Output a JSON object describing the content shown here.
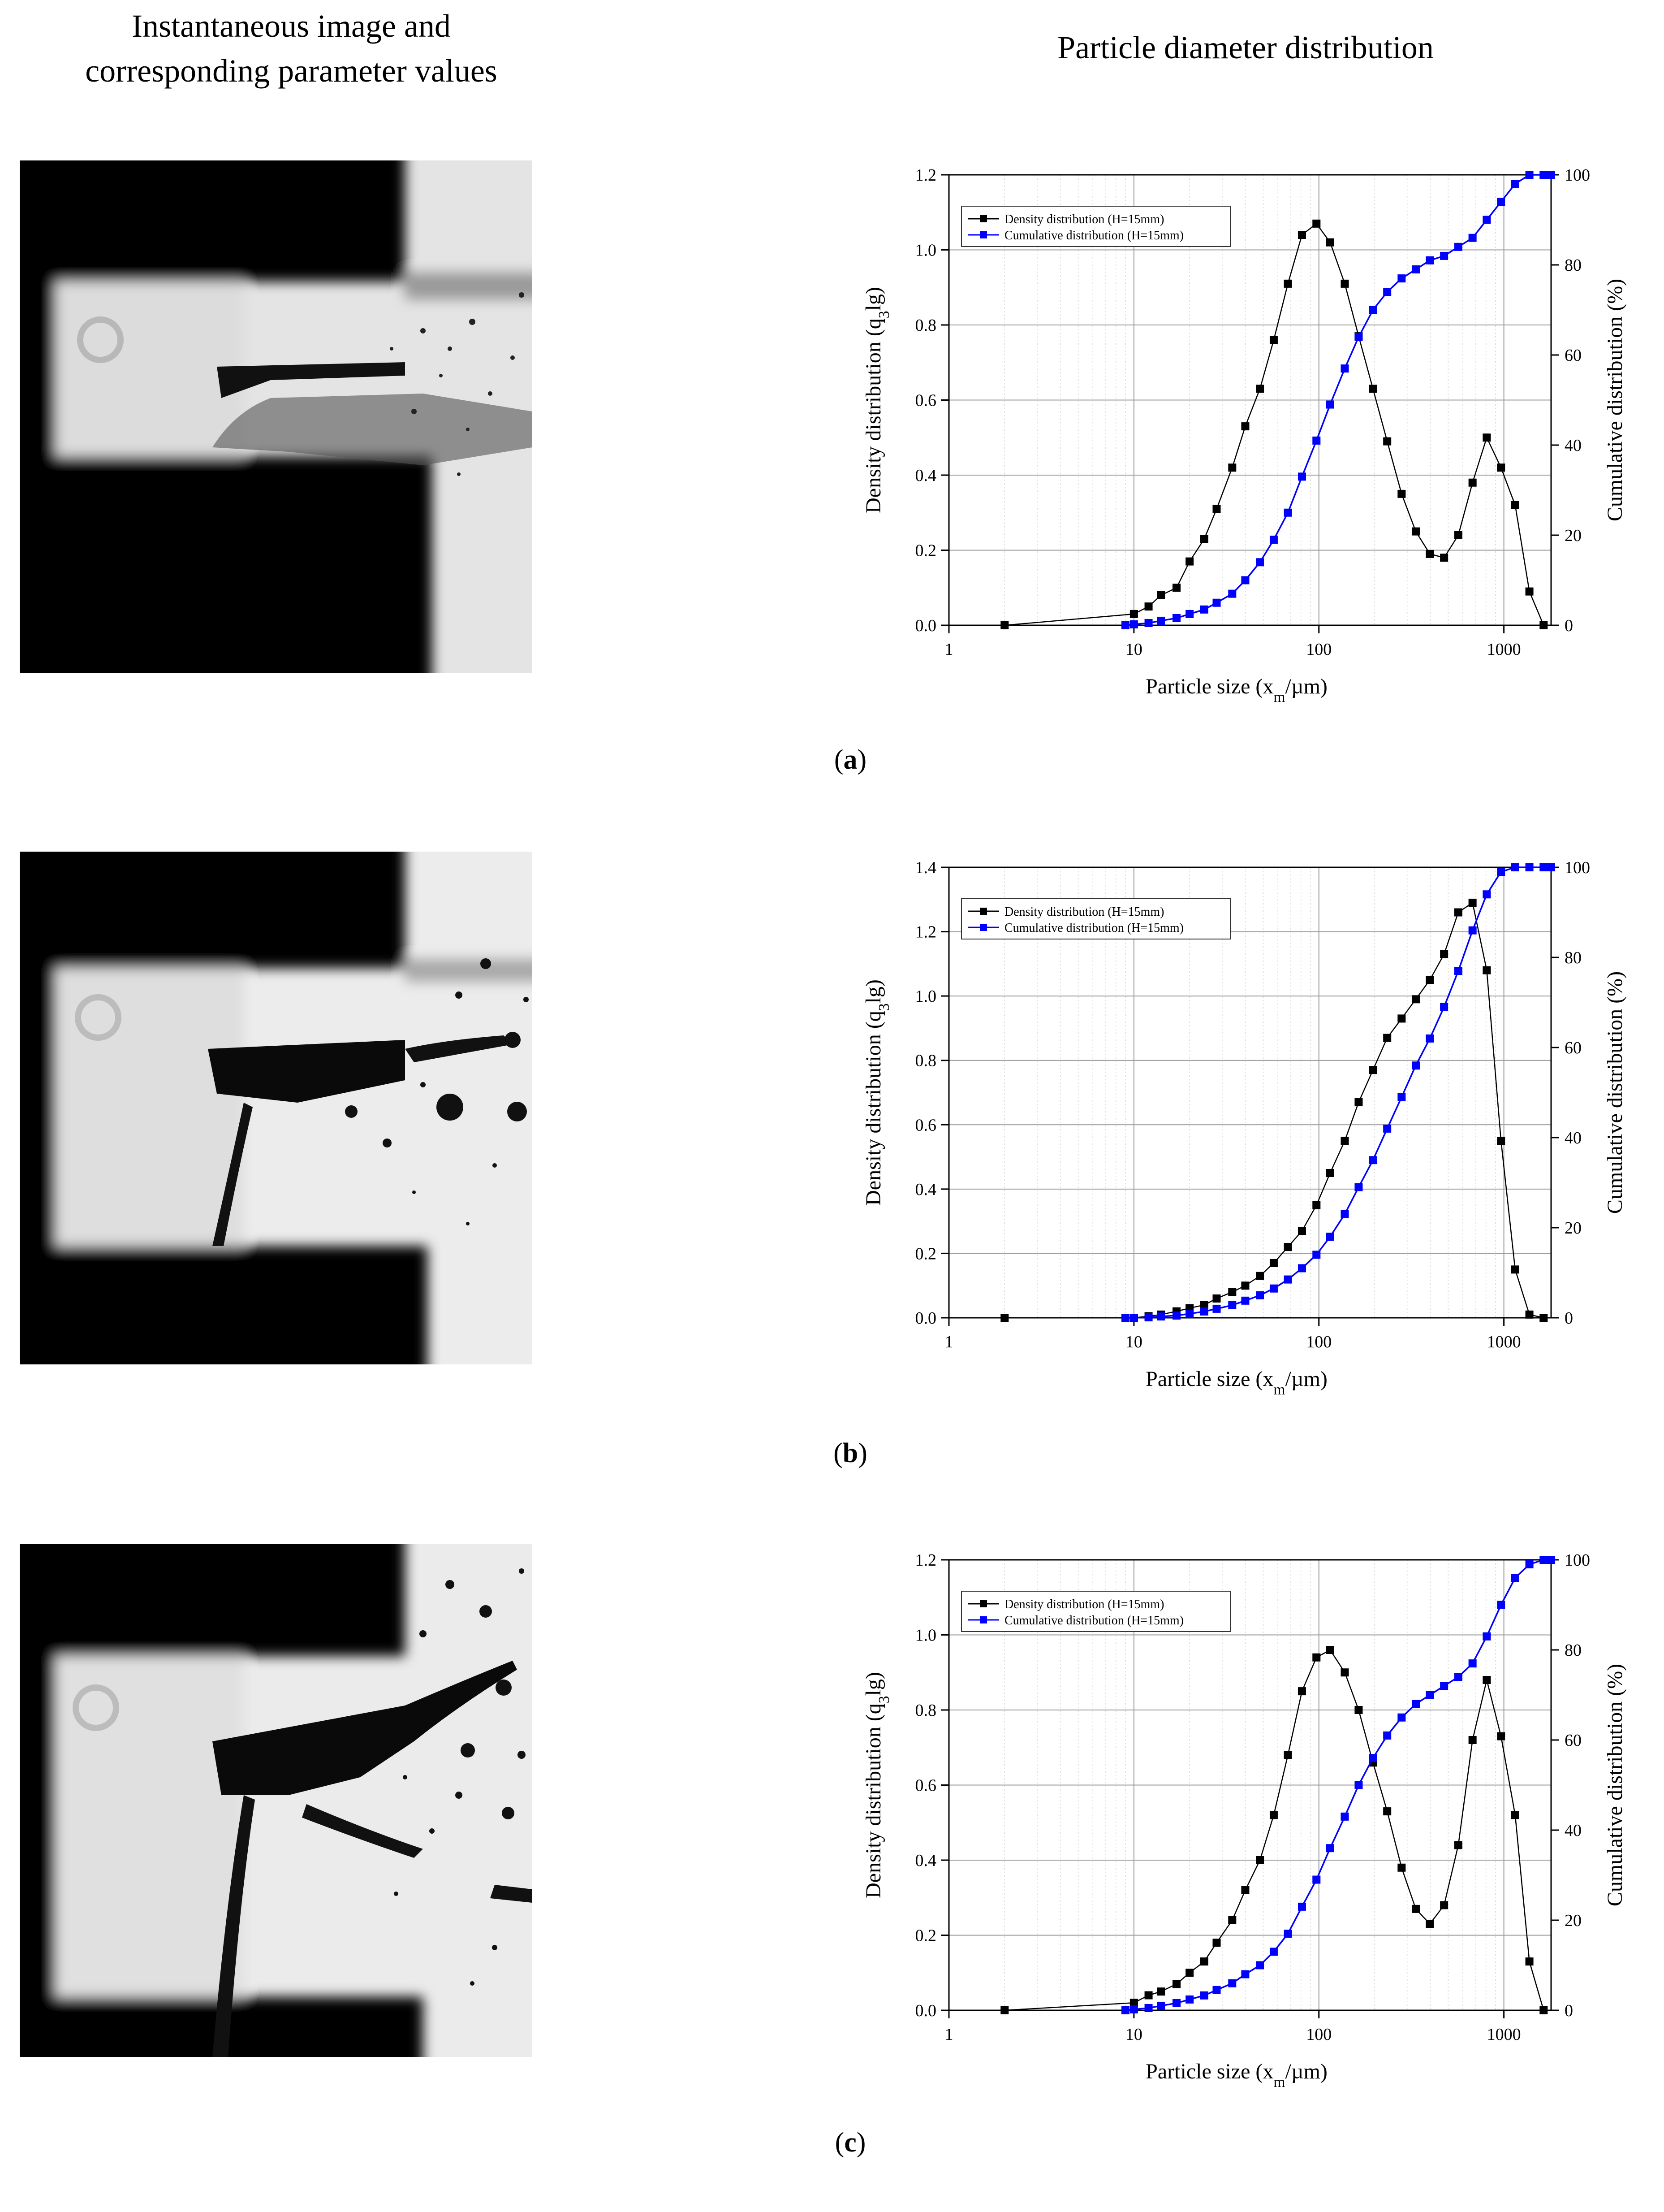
{
  "headers": {
    "left_line1": "Instantaneous image and",
    "left_line2": "corresponding parameter values",
    "right": "Particle diameter distribution"
  },
  "colors": {
    "density": "#000000",
    "cumulative": "#0000ff"
  },
  "chart_data": [
    {
      "type": "line",
      "panel_label": "a",
      "xlabel": "Particle size (x_m/µm)",
      "ylabel_left": "Density distribution (q_3lg)",
      "ylabel_right": "Cumulative distribution (%)",
      "x_scale": "log",
      "xlim": [
        1,
        1800
      ],
      "ylim_left": [
        0,
        1.2
      ],
      "ylim_right": [
        0,
        100
      ],
      "x_ticks": [
        1,
        10,
        100,
        1000
      ],
      "y_ticks_left": [
        0.0,
        0.2,
        0.4,
        0.6,
        0.8,
        1.0,
        1.2
      ],
      "y_ticks_right": [
        0,
        20,
        40,
        60,
        80,
        100
      ],
      "grid": true,
      "legend_position": "top-left",
      "series": [
        {
          "name": "Density distribution (H=15mm)",
          "axis": "left",
          "x": [
            2,
            10,
            12,
            14,
            17,
            20,
            24,
            28,
            34,
            40,
            48,
            57,
            68,
            81,
            97,
            115,
            138,
            164,
            196,
            234,
            280,
            334,
            398,
            475,
            567,
            677,
            808,
            965,
            1151,
            1374,
            1640
          ],
          "y": [
            0.0,
            0.03,
            0.05,
            0.08,
            0.1,
            0.17,
            0.23,
            0.31,
            0.42,
            0.53,
            0.63,
            0.76,
            0.91,
            1.04,
            1.07,
            1.02,
            0.91,
            0.77,
            0.63,
            0.49,
            0.35,
            0.25,
            0.19,
            0.18,
            0.24,
            0.38,
            0.5,
            0.42,
            0.32,
            0.09,
            0.0
          ]
        },
        {
          "name": "Cumulative distribution (H=15mm)",
          "axis": "right",
          "x": [
            9,
            10,
            12,
            14,
            17,
            20,
            24,
            28,
            34,
            40,
            48,
            57,
            68,
            81,
            97,
            115,
            138,
            164,
            196,
            234,
            280,
            334,
            398,
            475,
            567,
            677,
            808,
            965,
            1151,
            1374,
            1640,
            1800
          ],
          "y": [
            0,
            0.2,
            0.5,
            1,
            1.6,
            2.5,
            3.5,
            5,
            7,
            10,
            14,
            19,
            25,
            33,
            41,
            49,
            57,
            64,
            70,
            74,
            77,
            79,
            81,
            82,
            84,
            86,
            90,
            94,
            98,
            100,
            100,
            100
          ]
        }
      ]
    },
    {
      "type": "line",
      "panel_label": "b",
      "xlabel": "Particle size (x_m/µm)",
      "ylabel_left": "Density distribution (q_3lg)",
      "ylabel_right": "Cumulative distribution (%)",
      "x_scale": "log",
      "xlim": [
        1,
        1800
      ],
      "ylim_left": [
        0,
        1.4
      ],
      "ylim_right": [
        0,
        100
      ],
      "x_ticks": [
        1,
        10,
        100,
        1000
      ],
      "y_ticks_left": [
        0.0,
        0.2,
        0.4,
        0.6,
        0.8,
        1.0,
        1.2,
        1.4
      ],
      "y_ticks_right": [
        0,
        20,
        40,
        60,
        80,
        100
      ],
      "grid": true,
      "legend_position": "top-left",
      "series": [
        {
          "name": "Density distribution (H=15mm)",
          "axis": "left",
          "x": [
            2,
            9,
            10,
            12,
            14,
            17,
            20,
            24,
            28,
            34,
            40,
            48,
            57,
            68,
            81,
            97,
            115,
            138,
            164,
            196,
            234,
            280,
            334,
            398,
            475,
            567,
            677,
            808,
            965,
            1151,
            1374,
            1640
          ],
          "y": [
            0.0,
            0.0,
            0.0,
            0.005,
            0.01,
            0.02,
            0.03,
            0.04,
            0.06,
            0.08,
            0.1,
            0.13,
            0.17,
            0.22,
            0.27,
            0.35,
            0.45,
            0.55,
            0.67,
            0.77,
            0.87,
            0.93,
            0.99,
            1.05,
            1.13,
            1.26,
            1.29,
            1.08,
            0.55,
            0.15,
            0.01,
            0.0
          ]
        },
        {
          "name": "Cumulative distribution (H=15mm)",
          "axis": "right",
          "x": [
            9,
            10,
            12,
            14,
            17,
            20,
            24,
            28,
            34,
            40,
            48,
            57,
            68,
            81,
            97,
            115,
            138,
            164,
            196,
            234,
            280,
            334,
            398,
            475,
            567,
            677,
            808,
            965,
            1151,
            1374,
            1640,
            1800
          ],
          "y": [
            0,
            0,
            0.1,
            0.3,
            0.5,
            0.9,
            1.4,
            2,
            2.8,
            3.8,
            5,
            6.5,
            8.5,
            11,
            14,
            18,
            23,
            29,
            35,
            42,
            49,
            56,
            62,
            69,
            77,
            86,
            94,
            99,
            100,
            100,
            100,
            100
          ]
        }
      ]
    },
    {
      "type": "line",
      "panel_label": "c",
      "xlabel": "Particle size (x_m/µm)",
      "ylabel_left": "Density distribution (q_3lg)",
      "ylabel_right": "Cumulative distribution (%)",
      "x_scale": "log",
      "xlim": [
        1,
        1800
      ],
      "ylim_left": [
        0,
        1.2
      ],
      "ylim_right": [
        0,
        100
      ],
      "x_ticks": [
        1,
        10,
        100,
        1000
      ],
      "y_ticks_left": [
        0.0,
        0.2,
        0.4,
        0.6,
        0.8,
        1.0,
        1.2
      ],
      "y_ticks_right": [
        0,
        20,
        40,
        60,
        80,
        100
      ],
      "grid": true,
      "legend_position": "top-left",
      "series": [
        {
          "name": "Density distribution (H=15mm)",
          "axis": "left",
          "x": [
            2,
            10,
            12,
            14,
            17,
            20,
            24,
            28,
            34,
            40,
            48,
            57,
            68,
            81,
            97,
            115,
            138,
            164,
            196,
            234,
            280,
            334,
            398,
            475,
            567,
            677,
            808,
            965,
            1151,
            1374,
            1640
          ],
          "y": [
            0.0,
            0.02,
            0.04,
            0.05,
            0.07,
            0.1,
            0.13,
            0.18,
            0.24,
            0.32,
            0.4,
            0.52,
            0.68,
            0.85,
            0.94,
            0.96,
            0.9,
            0.8,
            0.66,
            0.53,
            0.38,
            0.27,
            0.23,
            0.28,
            0.44,
            0.72,
            0.88,
            0.73,
            0.52,
            0.13,
            0.0
          ]
        },
        {
          "name": "Cumulative distribution (H=15mm)",
          "axis": "right",
          "x": [
            9,
            10,
            12,
            14,
            17,
            20,
            24,
            28,
            34,
            40,
            48,
            57,
            68,
            81,
            97,
            115,
            138,
            164,
            196,
            234,
            280,
            334,
            398,
            475,
            567,
            677,
            808,
            965,
            1151,
            1374,
            1640,
            1800
          ],
          "y": [
            0,
            0.2,
            0.5,
            1,
            1.6,
            2.4,
            3.3,
            4.5,
            6,
            8,
            10,
            13,
            17,
            23,
            29,
            36,
            43,
            50,
            56,
            61,
            65,
            68,
            70,
            72,
            74,
            77,
            83,
            90,
            96,
            99,
            100,
            100
          ]
        }
      ]
    }
  ]
}
